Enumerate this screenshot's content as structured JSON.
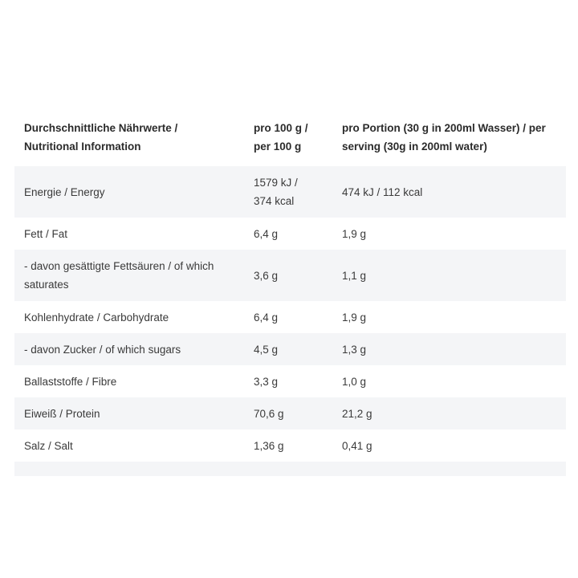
{
  "table": {
    "headers": [
      "Durchschnittliche Nährwerte / Nutritional Information",
      "pro 100 g / per 100 g",
      "pro Portion (30 g in 200ml Wasser) / per serving (30g in 200ml water)"
    ],
    "rows": [
      [
        "Energie / Energy",
        "1579 kJ / 374 kcal",
        "474 kJ / 112 kcal"
      ],
      [
        "Fett / Fat",
        "6,4 g",
        "1,9 g"
      ],
      [
        "- davon gesättigte Fettsäuren / of which saturates",
        "3,6 g",
        "1,1 g"
      ],
      [
        "Kohlenhydrate / Carbohydrate",
        "6,4 g",
        "1,9 g"
      ],
      [
        "- davon Zucker / of which sugars",
        "4,5 g",
        "1,3 g"
      ],
      [
        "Ballaststoffe / Fibre",
        "3,3 g",
        "1,0 g"
      ],
      [
        "Eiweiß / Protein",
        "70,6 g",
        "21,2 g"
      ],
      [
        "Salz / Salt",
        "1,36 g",
        "0,41 g"
      ]
    ]
  }
}
